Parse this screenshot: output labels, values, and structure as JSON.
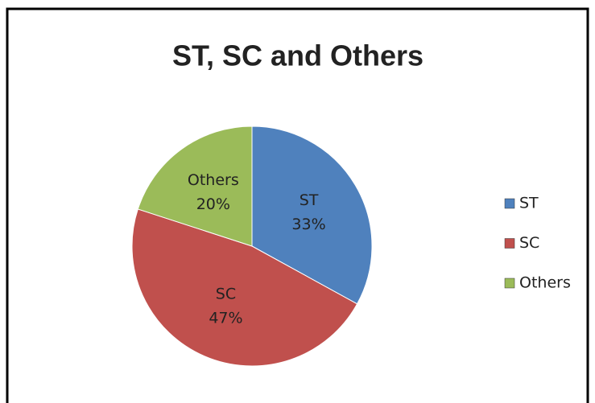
{
  "chart_data": {
    "type": "pie",
    "title": "ST, SC and Others",
    "categories": [
      "ST",
      "SC",
      "Others"
    ],
    "values": [
      33,
      47,
      20
    ],
    "value_labels": [
      "33%",
      "47%",
      "20%"
    ],
    "colors": [
      "#4f81bd",
      "#c0504d",
      "#9bbb59"
    ],
    "legend": "right"
  }
}
